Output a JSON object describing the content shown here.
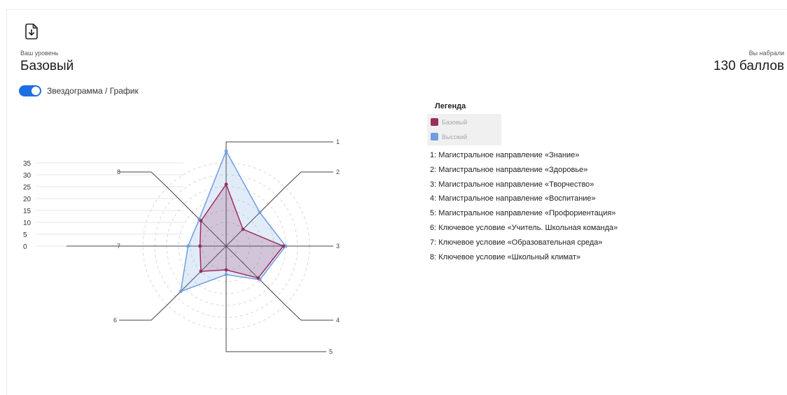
{
  "header": {
    "level_caption": "Ваш уровень",
    "level_value": "Базовый",
    "score_caption": "Вы набрали",
    "score_value": "130 баллов",
    "download_icon": "file-download-icon"
  },
  "toggle": {
    "label": "Звездограмма / График",
    "on": true
  },
  "legend": {
    "title": "Легенда",
    "series": [
      {
        "label": "Базовый",
        "color": "#9b2e5c"
      },
      {
        "label": "Высокий",
        "color": "#6f9ee0"
      }
    ],
    "axes": [
      "1: Магистральное направление «Знание»",
      "2: Магистральное направление «Здоровье»",
      "3: Магистральное направление «Творчество»",
      "4: Магистральное направление «Воспитание»",
      "5: Магистральное направление «Профориентация»",
      "6: Ключевое условие «Учитель. Школьная команда»",
      "7: Ключевое условие «Образовательная среда»",
      "8: Ключевое условие «Школьный климат»"
    ]
  },
  "chart_data": {
    "type": "radar",
    "categories": [
      "1",
      "2",
      "3",
      "4",
      "5",
      "6",
      "7",
      "8"
    ],
    "yticks": [
      0,
      5,
      10,
      15,
      20,
      25,
      30,
      35
    ],
    "ylim": [
      0,
      35
    ],
    "series": [
      {
        "name": "Базовый",
        "color": "#9b2e5c",
        "values": [
          26,
          10,
          24,
          19,
          10,
          15,
          11,
          15
        ]
      },
      {
        "name": "Высокий",
        "color": "#6f9ee0",
        "values": [
          40,
          20,
          25,
          20,
          12,
          27,
          16,
          16
        ]
      }
    ]
  }
}
